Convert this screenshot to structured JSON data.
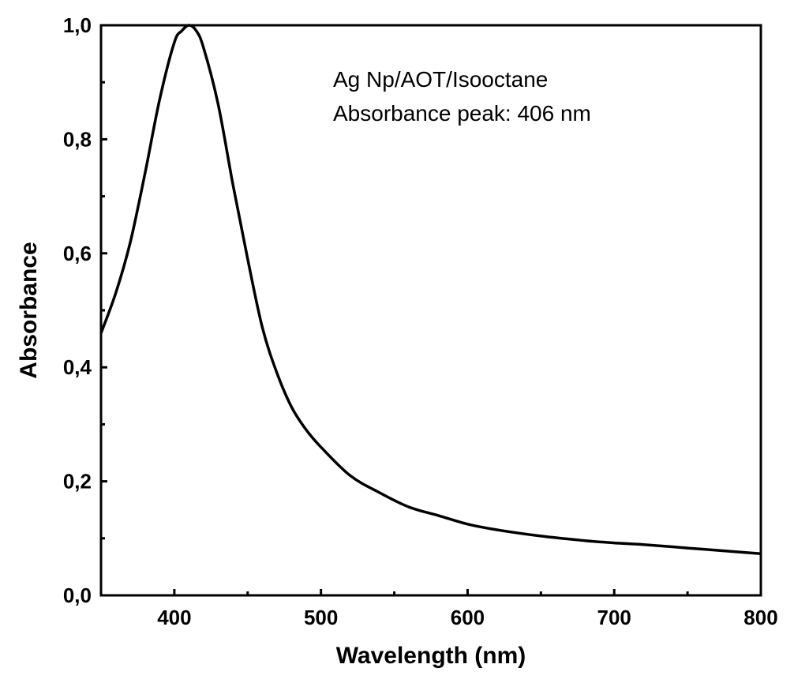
{
  "chart_data": {
    "type": "line",
    "title": "",
    "xlabel": "Wavelength (nm)",
    "ylabel": "Absorbance",
    "xlim": [
      350,
      800
    ],
    "ylim": [
      0.0,
      1.0
    ],
    "x_ticks": [
      400,
      500,
      600,
      700,
      800
    ],
    "y_ticks": [
      "0,0",
      "0,2",
      "0,4",
      "0,6",
      "0,8",
      "1,0"
    ],
    "y_tick_values": [
      0.0,
      0.2,
      0.4,
      0.6,
      0.8,
      1.0
    ],
    "grid": false,
    "legend": "none",
    "annotations": [
      "Ag Np/AOT/Isooctane",
      "Absorbance peak: 406 nm"
    ],
    "series": [
      {
        "color": "#000000",
        "x": [
          350,
          360,
          370,
          380,
          390,
          400,
          405,
          410,
          415,
          420,
          430,
          440,
          450,
          460,
          470,
          480,
          490,
          500,
          520,
          540,
          560,
          580,
          600,
          620,
          650,
          680,
          700,
          720,
          750,
          780,
          800
        ],
        "y": [
          0.46,
          0.53,
          0.62,
          0.74,
          0.87,
          0.97,
          0.99,
          1.0,
          0.99,
          0.96,
          0.86,
          0.72,
          0.59,
          0.47,
          0.39,
          0.33,
          0.29,
          0.26,
          0.21,
          0.18,
          0.155,
          0.14,
          0.125,
          0.115,
          0.104,
          0.096,
          0.092,
          0.089,
          0.083,
          0.077,
          0.073
        ]
      }
    ]
  }
}
